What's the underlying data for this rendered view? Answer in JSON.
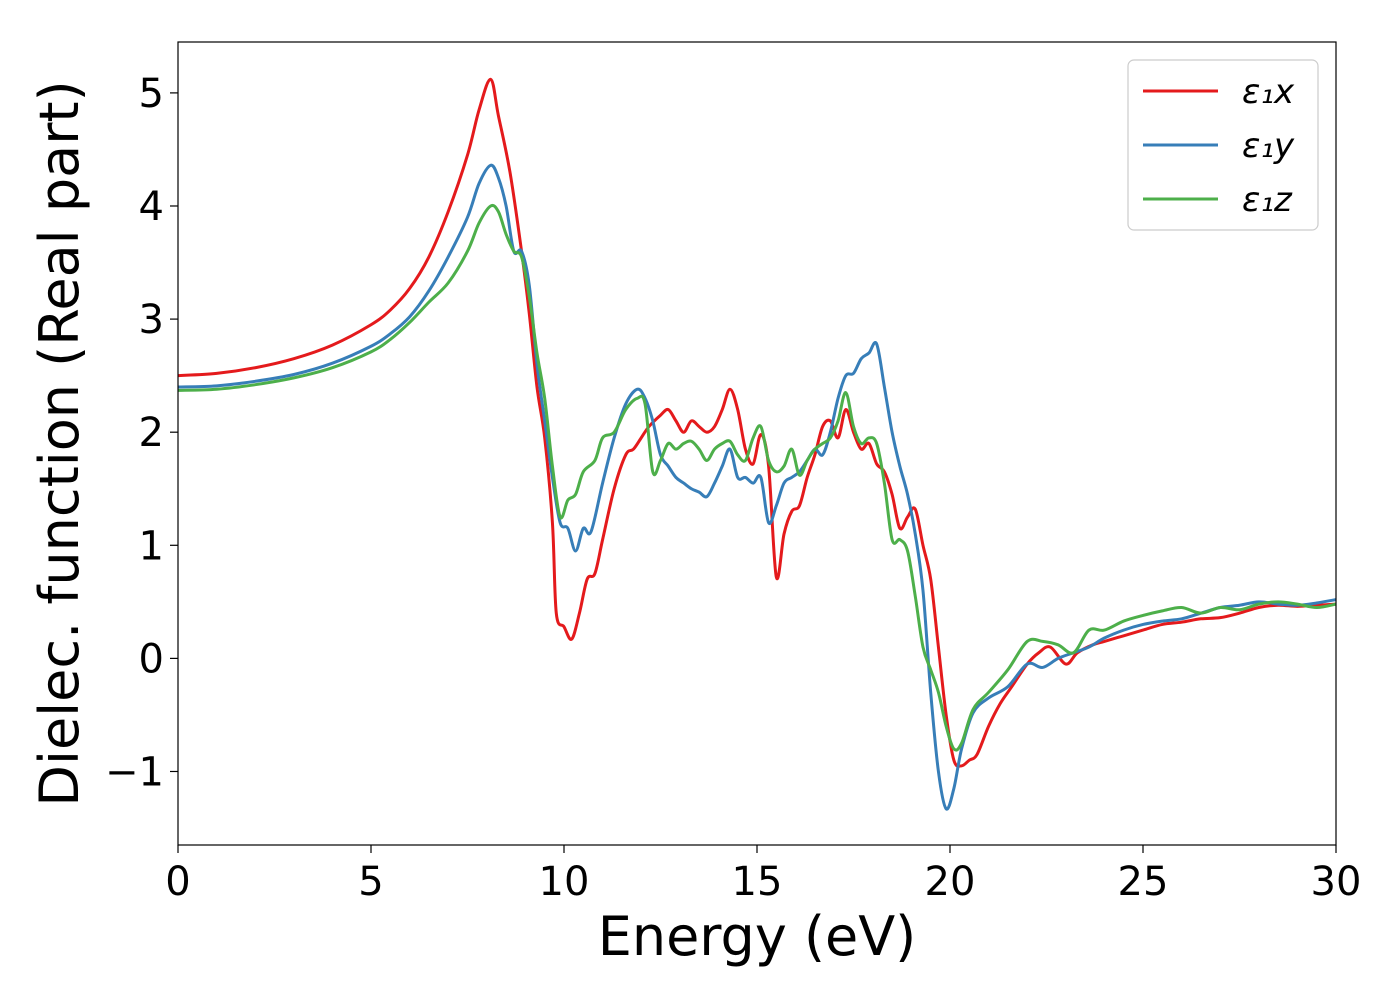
{
  "chart_data": {
    "type": "line",
    "title": "",
    "xlabel": "Energy (eV)",
    "ylabel": "Dielec. function (Real part)",
    "xlim": [
      0,
      30
    ],
    "ylim": [
      -1.65,
      5.45
    ],
    "xticks": [
      0,
      5,
      10,
      15,
      20,
      25,
      30
    ],
    "xtick_labels": [
      "0",
      "5",
      "10",
      "15",
      "20",
      "25",
      "30"
    ],
    "yticks": [
      -1,
      0,
      1,
      2,
      3,
      4,
      5
    ],
    "ytick_labels": [
      "−1",
      "0",
      "1",
      "2",
      "3",
      "4",
      "5"
    ],
    "grid": false,
    "legend_position": "top-right",
    "series": [
      {
        "name": "ε₁x",
        "color": "#e41a1c",
        "points": [
          [
            0,
            2.5
          ],
          [
            1,
            2.52
          ],
          [
            2,
            2.57
          ],
          [
            3,
            2.65
          ],
          [
            4,
            2.77
          ],
          [
            5,
            2.95
          ],
          [
            5.5,
            3.08
          ],
          [
            6,
            3.27
          ],
          [
            6.5,
            3.55
          ],
          [
            7,
            3.95
          ],
          [
            7.5,
            4.45
          ],
          [
            7.8,
            4.85
          ],
          [
            8.1,
            5.12
          ],
          [
            8.3,
            4.8
          ],
          [
            8.6,
            4.3
          ],
          [
            8.9,
            3.6
          ],
          [
            9.1,
            3.05
          ],
          [
            9.3,
            2.4
          ],
          [
            9.5,
            1.95
          ],
          [
            9.7,
            1.2
          ],
          [
            9.8,
            0.4
          ],
          [
            10.0,
            0.28
          ],
          [
            10.2,
            0.17
          ],
          [
            10.4,
            0.4
          ],
          [
            10.6,
            0.7
          ],
          [
            10.8,
            0.75
          ],
          [
            11,
            1.05
          ],
          [
            11.3,
            1.5
          ],
          [
            11.6,
            1.8
          ],
          [
            11.8,
            1.85
          ],
          [
            12,
            1.95
          ],
          [
            12.2,
            2.05
          ],
          [
            12.5,
            2.15
          ],
          [
            12.7,
            2.2
          ],
          [
            12.9,
            2.1
          ],
          [
            13.1,
            2.0
          ],
          [
            13.3,
            2.1
          ],
          [
            13.5,
            2.05
          ],
          [
            13.7,
            2.0
          ],
          [
            13.9,
            2.05
          ],
          [
            14.1,
            2.2
          ],
          [
            14.3,
            2.38
          ],
          [
            14.5,
            2.2
          ],
          [
            14.7,
            1.85
          ],
          [
            14.9,
            1.72
          ],
          [
            15.1,
            1.98
          ],
          [
            15.3,
            1.7
          ],
          [
            15.5,
            0.72
          ],
          [
            15.7,
            1.1
          ],
          [
            15.9,
            1.3
          ],
          [
            16.1,
            1.35
          ],
          [
            16.3,
            1.6
          ],
          [
            16.5,
            1.8
          ],
          [
            16.7,
            2.05
          ],
          [
            16.9,
            2.1
          ],
          [
            17.1,
            1.95
          ],
          [
            17.3,
            2.2
          ],
          [
            17.5,
            2.0
          ],
          [
            17.7,
            1.85
          ],
          [
            17.9,
            1.9
          ],
          [
            18.1,
            1.72
          ],
          [
            18.3,
            1.65
          ],
          [
            18.5,
            1.45
          ],
          [
            18.7,
            1.15
          ],
          [
            18.9,
            1.25
          ],
          [
            19.1,
            1.32
          ],
          [
            19.3,
            1.0
          ],
          [
            19.5,
            0.7
          ],
          [
            19.7,
            0.1
          ],
          [
            19.9,
            -0.5
          ],
          [
            20.1,
            -0.9
          ],
          [
            20.3,
            -0.95
          ],
          [
            20.5,
            -0.9
          ],
          [
            20.7,
            -0.85
          ],
          [
            21,
            -0.6
          ],
          [
            21.3,
            -0.4
          ],
          [
            21.6,
            -0.25
          ],
          [
            22,
            -0.05
          ],
          [
            22.3,
            0.05
          ],
          [
            22.6,
            0.1
          ],
          [
            23,
            -0.05
          ],
          [
            23.3,
            0.05
          ],
          [
            23.7,
            0.12
          ],
          [
            24,
            0.15
          ],
          [
            24.5,
            0.2
          ],
          [
            25,
            0.25
          ],
          [
            25.5,
            0.3
          ],
          [
            26,
            0.32
          ],
          [
            26.5,
            0.35
          ],
          [
            27,
            0.36
          ],
          [
            27.5,
            0.4
          ],
          [
            28,
            0.45
          ],
          [
            28.5,
            0.47
          ],
          [
            29,
            0.46
          ],
          [
            29.5,
            0.47
          ],
          [
            30,
            0.48
          ]
        ]
      },
      {
        "name": "ε₁y",
        "color": "#377eb8",
        "points": [
          [
            0,
            2.4
          ],
          [
            1,
            2.41
          ],
          [
            2,
            2.45
          ],
          [
            3,
            2.51
          ],
          [
            4,
            2.61
          ],
          [
            5,
            2.76
          ],
          [
            5.5,
            2.87
          ],
          [
            6,
            3.02
          ],
          [
            6.5,
            3.25
          ],
          [
            7,
            3.55
          ],
          [
            7.5,
            3.9
          ],
          [
            7.8,
            4.2
          ],
          [
            8.1,
            4.36
          ],
          [
            8.3,
            4.25
          ],
          [
            8.5,
            4.0
          ],
          [
            8.7,
            3.6
          ],
          [
            8.9,
            3.6
          ],
          [
            9.1,
            3.3
          ],
          [
            9.3,
            2.6
          ],
          [
            9.5,
            2.1
          ],
          [
            9.7,
            1.6
          ],
          [
            9.9,
            1.2
          ],
          [
            10.1,
            1.15
          ],
          [
            10.3,
            0.95
          ],
          [
            10.5,
            1.15
          ],
          [
            10.7,
            1.12
          ],
          [
            11,
            1.55
          ],
          [
            11.3,
            1.95
          ],
          [
            11.6,
            2.25
          ],
          [
            11.9,
            2.38
          ],
          [
            12.1,
            2.3
          ],
          [
            12.3,
            2.1
          ],
          [
            12.5,
            1.8
          ],
          [
            12.7,
            1.7
          ],
          [
            12.9,
            1.6
          ],
          [
            13.1,
            1.55
          ],
          [
            13.3,
            1.5
          ],
          [
            13.5,
            1.47
          ],
          [
            13.7,
            1.43
          ],
          [
            13.9,
            1.55
          ],
          [
            14.1,
            1.7
          ],
          [
            14.3,
            1.85
          ],
          [
            14.5,
            1.6
          ],
          [
            14.7,
            1.6
          ],
          [
            14.9,
            1.55
          ],
          [
            15.1,
            1.6
          ],
          [
            15.3,
            1.2
          ],
          [
            15.5,
            1.35
          ],
          [
            15.7,
            1.55
          ],
          [
            15.9,
            1.6
          ],
          [
            16.1,
            1.65
          ],
          [
            16.3,
            1.75
          ],
          [
            16.5,
            1.85
          ],
          [
            16.7,
            1.8
          ],
          [
            16.9,
            2.0
          ],
          [
            17.1,
            2.3
          ],
          [
            17.3,
            2.5
          ],
          [
            17.5,
            2.52
          ],
          [
            17.7,
            2.65
          ],
          [
            17.9,
            2.7
          ],
          [
            18.1,
            2.78
          ],
          [
            18.3,
            2.4
          ],
          [
            18.5,
            2.0
          ],
          [
            18.7,
            1.7
          ],
          [
            18.9,
            1.45
          ],
          [
            19.1,
            1.1
          ],
          [
            19.3,
            0.6
          ],
          [
            19.5,
            -0.3
          ],
          [
            19.7,
            -1.0
          ],
          [
            19.9,
            -1.33
          ],
          [
            20.1,
            -1.15
          ],
          [
            20.3,
            -0.8
          ],
          [
            20.6,
            -0.48
          ],
          [
            21,
            -0.35
          ],
          [
            21.5,
            -0.25
          ],
          [
            22,
            -0.05
          ],
          [
            22.4,
            -0.08
          ],
          [
            22.8,
            0.0
          ],
          [
            23.2,
            0.05
          ],
          [
            23.6,
            0.1
          ],
          [
            24,
            0.18
          ],
          [
            24.5,
            0.25
          ],
          [
            25,
            0.3
          ],
          [
            25.5,
            0.33
          ],
          [
            26,
            0.35
          ],
          [
            26.5,
            0.4
          ],
          [
            27,
            0.45
          ],
          [
            27.5,
            0.47
          ],
          [
            28,
            0.5
          ],
          [
            28.5,
            0.48
          ],
          [
            29,
            0.47
          ],
          [
            29.5,
            0.49
          ],
          [
            30,
            0.52
          ]
        ]
      },
      {
        "name": "ε₁z",
        "color": "#4daf4a",
        "points": [
          [
            0,
            2.37
          ],
          [
            1,
            2.38
          ],
          [
            2,
            2.42
          ],
          [
            3,
            2.48
          ],
          [
            4,
            2.57
          ],
          [
            5,
            2.71
          ],
          [
            5.5,
            2.82
          ],
          [
            6,
            2.97
          ],
          [
            6.5,
            3.15
          ],
          [
            7,
            3.32
          ],
          [
            7.5,
            3.6
          ],
          [
            7.8,
            3.85
          ],
          [
            8.1,
            4.0
          ],
          [
            8.3,
            3.95
          ],
          [
            8.5,
            3.75
          ],
          [
            8.7,
            3.6
          ],
          [
            8.9,
            3.55
          ],
          [
            9.1,
            3.2
          ],
          [
            9.3,
            2.7
          ],
          [
            9.5,
            2.3
          ],
          [
            9.7,
            1.7
          ],
          [
            9.9,
            1.25
          ],
          [
            10.1,
            1.4
          ],
          [
            10.3,
            1.45
          ],
          [
            10.5,
            1.65
          ],
          [
            10.8,
            1.75
          ],
          [
            11,
            1.95
          ],
          [
            11.3,
            2.0
          ],
          [
            11.6,
            2.2
          ],
          [
            11.9,
            2.3
          ],
          [
            12.1,
            2.25
          ],
          [
            12.3,
            1.65
          ],
          [
            12.5,
            1.75
          ],
          [
            12.7,
            1.9
          ],
          [
            12.9,
            1.85
          ],
          [
            13.1,
            1.9
          ],
          [
            13.3,
            1.92
          ],
          [
            13.5,
            1.85
          ],
          [
            13.7,
            1.75
          ],
          [
            13.9,
            1.85
          ],
          [
            14.1,
            1.9
          ],
          [
            14.3,
            1.92
          ],
          [
            14.5,
            1.8
          ],
          [
            14.7,
            1.75
          ],
          [
            14.9,
            1.95
          ],
          [
            15.1,
            2.05
          ],
          [
            15.3,
            1.75
          ],
          [
            15.5,
            1.65
          ],
          [
            15.7,
            1.7
          ],
          [
            15.9,
            1.85
          ],
          [
            16.1,
            1.62
          ],
          [
            16.3,
            1.75
          ],
          [
            16.5,
            1.85
          ],
          [
            16.7,
            1.9
          ],
          [
            16.9,
            1.95
          ],
          [
            17.1,
            2.1
          ],
          [
            17.3,
            2.35
          ],
          [
            17.5,
            2.05
          ],
          [
            17.7,
            1.9
          ],
          [
            17.9,
            1.95
          ],
          [
            18.1,
            1.9
          ],
          [
            18.3,
            1.55
          ],
          [
            18.5,
            1.05
          ],
          [
            18.7,
            1.05
          ],
          [
            18.9,
            0.95
          ],
          [
            19.1,
            0.55
          ],
          [
            19.3,
            0.1
          ],
          [
            19.5,
            -0.1
          ],
          [
            19.7,
            -0.3
          ],
          [
            19.9,
            -0.6
          ],
          [
            20.1,
            -0.8
          ],
          [
            20.3,
            -0.75
          ],
          [
            20.6,
            -0.45
          ],
          [
            21,
            -0.3
          ],
          [
            21.5,
            -0.1
          ],
          [
            22,
            0.15
          ],
          [
            22.4,
            0.15
          ],
          [
            22.8,
            0.12
          ],
          [
            23.2,
            0.05
          ],
          [
            23.6,
            0.25
          ],
          [
            24,
            0.25
          ],
          [
            24.5,
            0.33
          ],
          [
            25,
            0.38
          ],
          [
            25.5,
            0.42
          ],
          [
            26,
            0.45
          ],
          [
            26.5,
            0.4
          ],
          [
            27,
            0.45
          ],
          [
            27.5,
            0.43
          ],
          [
            28,
            0.48
          ],
          [
            28.5,
            0.5
          ],
          [
            29,
            0.48
          ],
          [
            29.5,
            0.45
          ],
          [
            30,
            0.48
          ]
        ]
      }
    ]
  }
}
